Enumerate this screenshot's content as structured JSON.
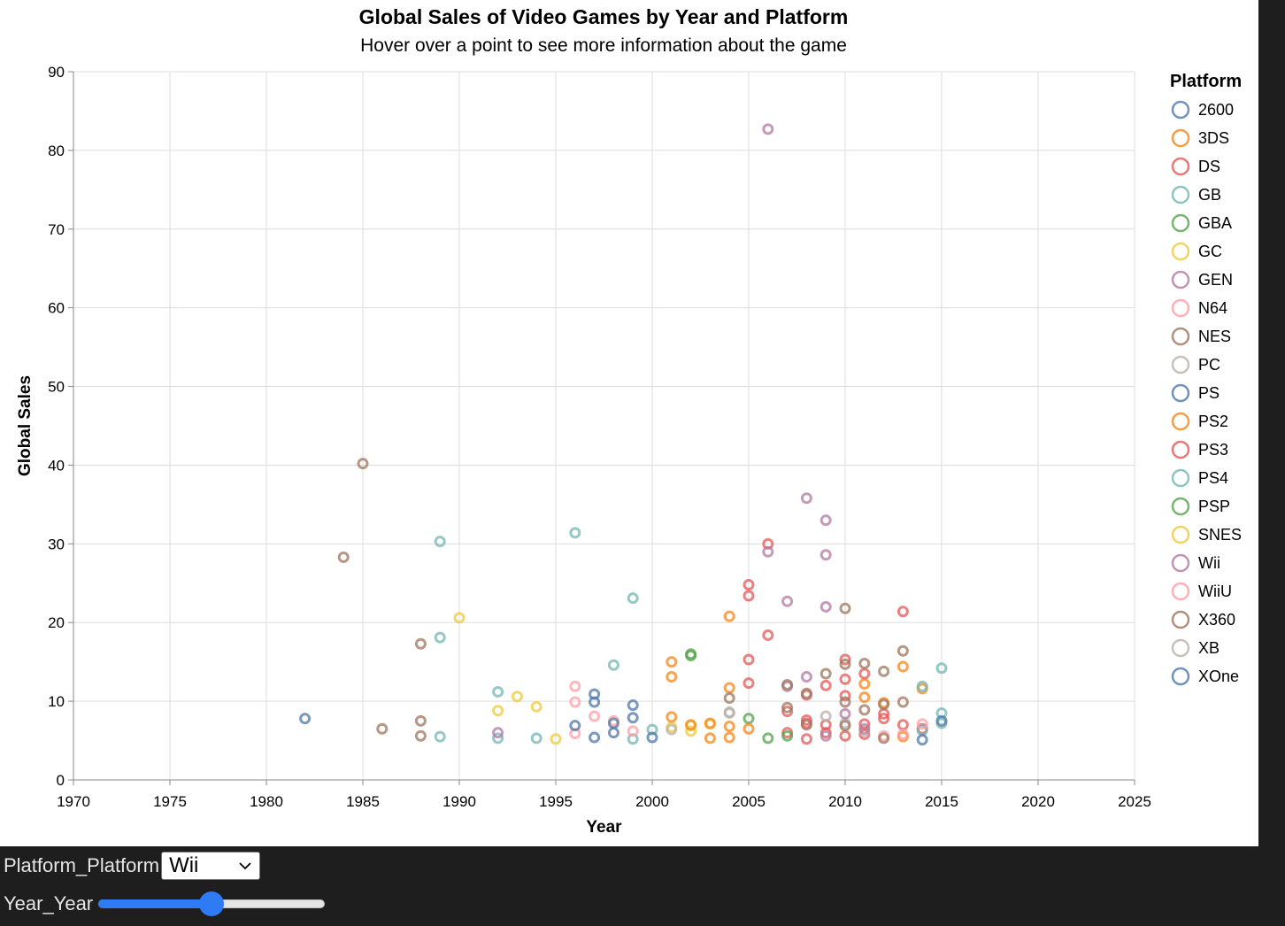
{
  "chart_data": {
    "type": "scatter",
    "title": "Global Sales of Video Games by Year and Platform",
    "subtitle": "Hover over a point to see more information about the game",
    "xlabel": "Year",
    "ylabel": "Global Sales",
    "xlim": [
      1970,
      2025
    ],
    "ylim": [
      0,
      90
    ],
    "x_ticks": [
      1970,
      1975,
      1980,
      1985,
      1990,
      1995,
      2000,
      2005,
      2010,
      2015,
      2020,
      2025
    ],
    "y_ticks": [
      0,
      10,
      20,
      30,
      40,
      50,
      60,
      70,
      80,
      90
    ],
    "grid": true,
    "legend_position": "right",
    "legend_title": "Platform",
    "series": [
      {
        "name": "2600",
        "color": "#4c78a8",
        "points": [
          [
            1982,
            7.8
          ]
        ]
      },
      {
        "name": "3DS",
        "color": "#f58518",
        "points": [
          [
            2011,
            12.2
          ],
          [
            2013,
            14.4
          ],
          [
            2014,
            11.6
          ],
          [
            2012,
            9.8
          ],
          [
            2013,
            5.5
          ],
          [
            2011,
            10.5
          ]
        ]
      },
      {
        "name": "DS",
        "color": "#e45756",
        "points": [
          [
            2005,
            24.8
          ],
          [
            2006,
            30.0
          ],
          [
            2005,
            23.4
          ],
          [
            2006,
            18.4
          ],
          [
            2005,
            15.3
          ],
          [
            2005,
            12.3
          ],
          [
            2008,
            10.8
          ],
          [
            2009,
            12.0
          ],
          [
            2010,
            12.8
          ],
          [
            2007,
            8.7
          ],
          [
            2008,
            7.6
          ],
          [
            2009,
            7.0
          ],
          [
            2007,
            6.0
          ],
          [
            2010,
            5.6
          ],
          [
            2011,
            5.8
          ],
          [
            2008,
            5.2
          ]
        ]
      },
      {
        "name": "GB",
        "color": "#72b7b2",
        "points": [
          [
            1989,
            30.3
          ],
          [
            1996,
            31.4
          ],
          [
            1989,
            18.1
          ],
          [
            1999,
            23.1
          ],
          [
            1998,
            14.6
          ],
          [
            1992,
            11.2
          ],
          [
            1989,
            5.5
          ],
          [
            1992,
            5.3
          ],
          [
            1994,
            5.3
          ],
          [
            1999,
            5.2
          ],
          [
            2000,
            6.4
          ]
        ]
      },
      {
        "name": "GBA",
        "color": "#54a24b",
        "points": [
          [
            2002,
            16.0
          ],
          [
            2002,
            15.8
          ],
          [
            2005,
            7.8
          ],
          [
            2006,
            5.3
          ]
        ]
      },
      {
        "name": "GC",
        "color": "#eeca3b",
        "points": [
          [
            2001,
            6.7
          ],
          [
            2002,
            6.2
          ],
          [
            2003,
            7.1
          ],
          [
            2002,
            6.9
          ]
        ]
      },
      {
        "name": "GEN",
        "color": "#b279a2",
        "points": [
          [
            1992,
            6.0
          ]
        ]
      },
      {
        "name": "N64",
        "color": "#ff9da6",
        "points": [
          [
            1996,
            11.9
          ],
          [
            1996,
            9.9
          ],
          [
            1997,
            8.1
          ],
          [
            1998,
            7.5
          ],
          [
            1999,
            6.2
          ],
          [
            1996,
            5.9
          ]
        ]
      },
      {
        "name": "NES",
        "color": "#9d755d",
        "points": [
          [
            1985,
            40.2
          ],
          [
            1984,
            28.3
          ],
          [
            1988,
            17.3
          ],
          [
            1988,
            7.5
          ],
          [
            1986,
            6.5
          ],
          [
            1988,
            5.6
          ]
        ]
      },
      {
        "name": "PC",
        "color": "#bab0ac",
        "points": [
          [
            2004,
            8.6
          ],
          [
            2009,
            8.1
          ],
          [
            2010,
            7.2
          ],
          [
            2011,
            6.2
          ]
        ]
      },
      {
        "name": "PS",
        "color": "#4c78a8",
        "points": [
          [
            1997,
            10.9
          ],
          [
            1999,
            9.5
          ],
          [
            1997,
            9.9
          ],
          [
            1996,
            6.9
          ],
          [
            1998,
            7.2
          ],
          [
            1999,
            7.9
          ],
          [
            2000,
            5.4
          ],
          [
            1997,
            5.4
          ],
          [
            1998,
            6.0
          ]
        ]
      },
      {
        "name": "PS2",
        "color": "#f58518",
        "points": [
          [
            2004,
            20.8
          ],
          [
            2001,
            15.0
          ],
          [
            2001,
            13.1
          ],
          [
            2004,
            11.7
          ],
          [
            2001,
            8.0
          ],
          [
            2003,
            7.2
          ],
          [
            2002,
            7.0
          ],
          [
            2004,
            6.8
          ],
          [
            2003,
            5.3
          ],
          [
            2005,
            6.5
          ],
          [
            2004,
            5.4
          ]
        ]
      },
      {
        "name": "PS3",
        "color": "#e45756",
        "points": [
          [
            2013,
            21.4
          ],
          [
            2010,
            15.3
          ],
          [
            2011,
            13.5
          ],
          [
            2012,
            8.4
          ],
          [
            2010,
            10.7
          ],
          [
            2012,
            7.8
          ],
          [
            2013,
            7.0
          ],
          [
            2011,
            7.1
          ],
          [
            2008,
            7.2
          ],
          [
            2009,
            6.0
          ],
          [
            2014,
            6.5
          ]
        ]
      },
      {
        "name": "PS4",
        "color": "#72b7b2",
        "points": [
          [
            2015,
            14.2
          ],
          [
            2014,
            11.9
          ],
          [
            2015,
            8.5
          ],
          [
            2015,
            7.2
          ],
          [
            2014,
            6.3
          ]
        ]
      },
      {
        "name": "PSP",
        "color": "#54a24b",
        "points": [
          [
            2007,
            5.6
          ]
        ]
      },
      {
        "name": "SNES",
        "color": "#eeca3b",
        "points": [
          [
            1990,
            20.6
          ],
          [
            1993,
            10.6
          ],
          [
            1994,
            9.3
          ],
          [
            1992,
            8.8
          ],
          [
            1995,
            5.2
          ]
        ]
      },
      {
        "name": "Wii",
        "color": "#b279a2",
        "points": [
          [
            2006,
            82.7
          ],
          [
            2008,
            35.8
          ],
          [
            2009,
            33.0
          ],
          [
            2006,
            29.0
          ],
          [
            2009,
            28.6
          ],
          [
            2007,
            22.7
          ],
          [
            2009,
            22.0
          ],
          [
            2008,
            13.1
          ],
          [
            2007,
            11.9
          ],
          [
            2010,
            8.4
          ],
          [
            2011,
            6.5
          ],
          [
            2009,
            5.6
          ]
        ]
      },
      {
        "name": "WiiU",
        "color": "#ff9da6",
        "points": [
          [
            2014,
            7.1
          ],
          [
            2012,
            5.6
          ],
          [
            2013,
            5.8
          ]
        ]
      },
      {
        "name": "X360",
        "color": "#9d755d",
        "points": [
          [
            2010,
            21.8
          ],
          [
            2011,
            14.8
          ],
          [
            2010,
            14.7
          ],
          [
            2012,
            13.8
          ],
          [
            2013,
            16.4
          ],
          [
            2009,
            13.5
          ],
          [
            2008,
            11.0
          ],
          [
            2007,
            12.1
          ],
          [
            2010,
            9.9
          ],
          [
            2011,
            8.9
          ],
          [
            2013,
            9.9
          ],
          [
            2012,
            9.6
          ],
          [
            2007,
            9.2
          ],
          [
            2008,
            7.0
          ],
          [
            2010,
            6.9
          ],
          [
            2004,
            10.4
          ],
          [
            2012,
            5.3
          ]
        ]
      },
      {
        "name": "XB",
        "color": "#bab0ac",
        "points": [
          [
            2004,
            8.5
          ],
          [
            2001,
            6.4
          ]
        ]
      },
      {
        "name": "XOne",
        "color": "#4c78a8",
        "points": [
          [
            2015,
            7.5
          ],
          [
            2014,
            5.1
          ]
        ]
      }
    ]
  },
  "controls": {
    "platform_label": "Platform_Platform",
    "platform_selected": "Wii",
    "year_label": "Year_Year",
    "year_slider_fraction": 0.5
  },
  "icons": {
    "select_arrow": "chevron-down-icon"
  }
}
